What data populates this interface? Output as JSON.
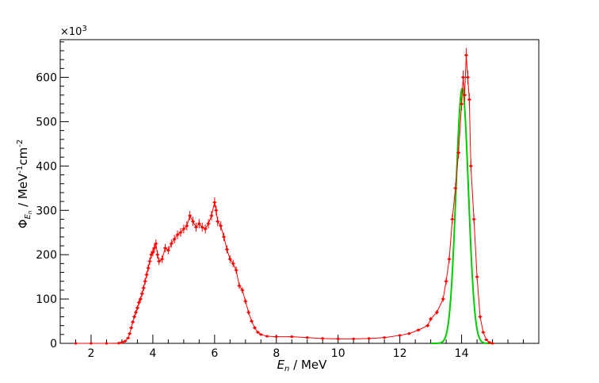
{
  "chart_data": {
    "type": "scatter",
    "title": "",
    "xlabel": "E_n / MeV",
    "xlabel_parts": {
      "symbol": "E",
      "sub": "n",
      "rest": " / MeV"
    },
    "ylabel": "Φ_E_n / MeV^-1 cm^-2",
    "ylabel_parts": {
      "phi": "Φ",
      "sub1": "E",
      "sub2": "n",
      "unit1": " / MeV",
      "sup1": "-1",
      "unit2": "cm",
      "sup2": "-2"
    },
    "y_multiplier": "×10³",
    "y_multiplier_parts": {
      "base": "×10",
      "exp": "3"
    },
    "xlim": [
      1.0,
      16.5
    ],
    "ylim": [
      0,
      685
    ],
    "xticks": [
      2,
      4,
      6,
      8,
      10,
      12,
      14
    ],
    "yticks": [
      0,
      100,
      200,
      300,
      400,
      500,
      600
    ],
    "grid": false,
    "series": [
      {
        "role": "measured",
        "color": "#ff0000",
        "points": [
          [
            1.5,
            0
          ],
          [
            2.0,
            0
          ],
          [
            2.5,
            0
          ],
          [
            2.9,
            0.5
          ],
          [
            3.0,
            2
          ],
          [
            3.1,
            5
          ],
          [
            3.2,
            12
          ],
          [
            3.25,
            22
          ],
          [
            3.3,
            35
          ],
          [
            3.35,
            48
          ],
          [
            3.4,
            60
          ],
          [
            3.45,
            70
          ],
          [
            3.5,
            80
          ],
          [
            3.55,
            92
          ],
          [
            3.6,
            100
          ],
          [
            3.65,
            112
          ],
          [
            3.7,
            125
          ],
          [
            3.75,
            140
          ],
          [
            3.8,
            155
          ],
          [
            3.85,
            170
          ],
          [
            3.9,
            185
          ],
          [
            3.95,
            200
          ],
          [
            4.0,
            205
          ],
          [
            4.05,
            215
          ],
          [
            4.1,
            225
          ],
          [
            4.15,
            200
          ],
          [
            4.2,
            185
          ],
          [
            4.3,
            190
          ],
          [
            4.4,
            215
          ],
          [
            4.5,
            210
          ],
          [
            4.6,
            225
          ],
          [
            4.7,
            235
          ],
          [
            4.8,
            245
          ],
          [
            4.9,
            250
          ],
          [
            5.0,
            258
          ],
          [
            5.1,
            265
          ],
          [
            5.2,
            288
          ],
          [
            5.3,
            275
          ],
          [
            5.4,
            262
          ],
          [
            5.5,
            270
          ],
          [
            5.6,
            262
          ],
          [
            5.7,
            258
          ],
          [
            5.8,
            270
          ],
          [
            5.9,
            288
          ],
          [
            6.0,
            318
          ],
          [
            6.05,
            300
          ],
          [
            6.1,
            275
          ],
          [
            6.2,
            265
          ],
          [
            6.3,
            240
          ],
          [
            6.4,
            212
          ],
          [
            6.5,
            190
          ],
          [
            6.6,
            180
          ],
          [
            6.7,
            165
          ],
          [
            6.8,
            130
          ],
          [
            6.9,
            120
          ],
          [
            7.0,
            95
          ],
          [
            7.1,
            70
          ],
          [
            7.2,
            50
          ],
          [
            7.3,
            35
          ],
          [
            7.4,
            25
          ],
          [
            7.5,
            20
          ],
          [
            7.7,
            16
          ],
          [
            8.0,
            15
          ],
          [
            8.5,
            15
          ],
          [
            9.0,
            13
          ],
          [
            9.5,
            11
          ],
          [
            10.0,
            10
          ],
          [
            10.5,
            10
          ],
          [
            11.0,
            11
          ],
          [
            11.5,
            13
          ],
          [
            12.0,
            18
          ],
          [
            12.3,
            22
          ],
          [
            12.6,
            30
          ],
          [
            12.9,
            40
          ],
          [
            13.0,
            55
          ],
          [
            13.2,
            70
          ],
          [
            13.4,
            100
          ],
          [
            13.5,
            140
          ],
          [
            13.6,
            190
          ],
          [
            13.7,
            280
          ],
          [
            13.8,
            350
          ],
          [
            13.9,
            430
          ],
          [
            14.0,
            540
          ],
          [
            14.05,
            600
          ],
          [
            14.1,
            560
          ],
          [
            14.15,
            650
          ],
          [
            14.2,
            600
          ],
          [
            14.25,
            550
          ],
          [
            14.3,
            400
          ],
          [
            14.4,
            280
          ],
          [
            14.5,
            150
          ],
          [
            14.6,
            60
          ],
          [
            14.7,
            25
          ],
          [
            14.8,
            8
          ],
          [
            14.9,
            2
          ],
          [
            15.0,
            0
          ]
        ]
      },
      {
        "role": "fit",
        "color": "#00cc00",
        "gauss": {
          "amplitude": 575,
          "mean": 14.02,
          "sigma": 0.2,
          "xmin": 13.0,
          "xmax": 15.05
        }
      }
    ]
  }
}
